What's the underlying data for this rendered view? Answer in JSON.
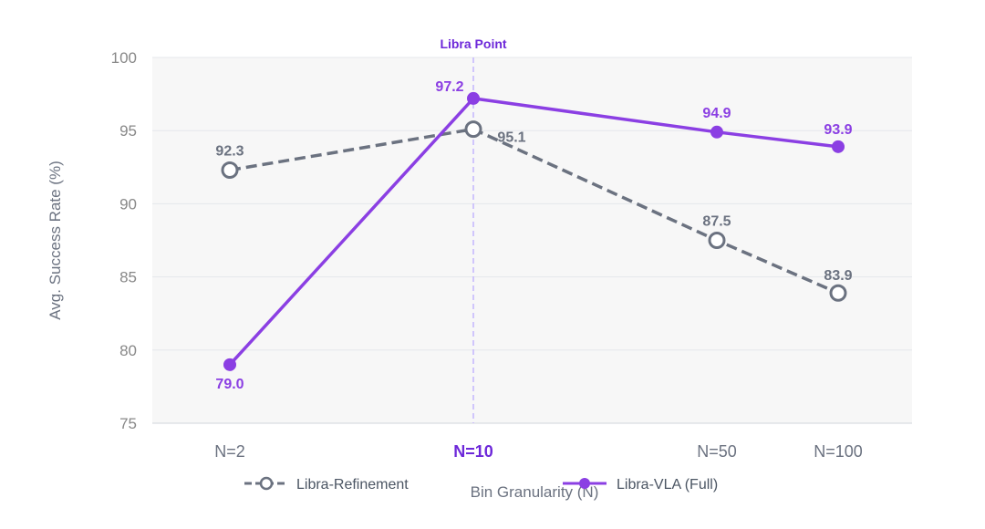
{
  "chart_data": {
    "type": "line",
    "title": "",
    "xlabel": "Bin Granularity (N)",
    "ylabel": "Avg. Success Rate (%)",
    "categories": [
      "N=2",
      "N=10",
      "N=50",
      "N=100"
    ],
    "highlight_category": "N=10",
    "ylim": [
      75,
      100
    ],
    "yticks": [
      75,
      80,
      85,
      90,
      95,
      100
    ],
    "grid": true,
    "legend_position": "bottom",
    "reference_line": {
      "category": "N=10",
      "label": "Libra Point"
    },
    "series": [
      {
        "name": "Libra-Refinement",
        "values": [
          92.3,
          95.1,
          87.5,
          83.9
        ],
        "labels": [
          "92.3",
          "95.1",
          "87.5",
          "83.9"
        ],
        "color": "#6b7280",
        "style": "dashed",
        "marker": "hollow-circle"
      },
      {
        "name": "Libra-VLA (Full)",
        "values": [
          79.0,
          97.2,
          94.9,
          93.9
        ],
        "labels": [
          "79.0",
          "97.2",
          "94.9",
          "93.9"
        ],
        "color": "#8b3fe3",
        "style": "solid",
        "marker": "filled-circle"
      }
    ]
  }
}
